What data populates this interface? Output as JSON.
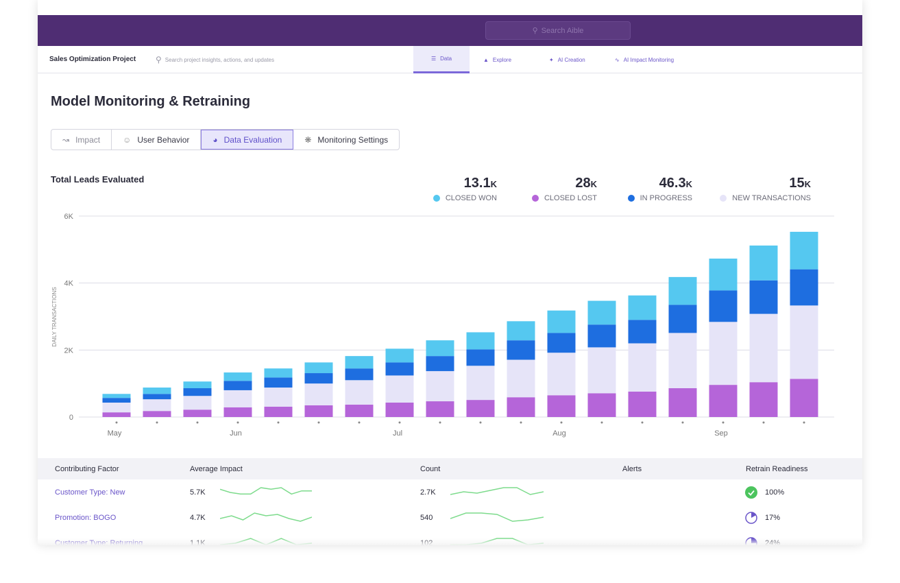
{
  "topbar": {
    "search_placeholder": "Search Aible"
  },
  "nav": {
    "project": "Sales Optimization Project",
    "search_placeholder": "Search project insights, actions, and updates",
    "tabs": [
      {
        "label": "Data",
        "icon": "database-icon",
        "active": true
      },
      {
        "label": "Explore",
        "icon": "explore-icon"
      },
      {
        "label": "AI Creation",
        "icon": "magic-wand-icon"
      },
      {
        "label": "AI Impact Monitoring",
        "icon": "pulse-icon"
      }
    ]
  },
  "page": {
    "title": "Model Monitoring & Retraining"
  },
  "subtabs": [
    {
      "label": "Impact",
      "icon": "chart-line-icon"
    },
    {
      "label": "User Behavior",
      "icon": "users-icon"
    },
    {
      "label": "Data Evaluation",
      "icon": "pie-icon",
      "active": true
    },
    {
      "label": "Monitoring Settings",
      "icon": "settings-icon"
    }
  ],
  "chart_title": "Total Leads Evaluated",
  "kpis": [
    {
      "value": "13.1",
      "unit": "K",
      "label": "CLOSED WON",
      "color": "#55c8f0"
    },
    {
      "value": "28",
      "unit": "K",
      "label": "CLOSED LOST",
      "color": "#b565d9"
    },
    {
      "value": "46.3",
      "unit": "K",
      "label": "IN PROGRESS",
      "color": "#1e6ee0"
    },
    {
      "value": "15",
      "unit": "K",
      "label": "NEW TRANSACTIONS",
      "color": "#e6e4f8"
    }
  ],
  "chart_data": {
    "type": "bar",
    "stacked": true,
    "ylabel": "DAILY TRANSACTIONS",
    "ylim": [
      0,
      6000
    ],
    "yticks": [
      {
        "v": 0,
        "label": "0"
      },
      {
        "v": 2000,
        "label": "2K"
      },
      {
        "v": 4000,
        "label": "4K"
      },
      {
        "v": 6000,
        "label": "6K"
      }
    ],
    "xlabels": [
      {
        "index": 0,
        "label": "May"
      },
      {
        "index": 3,
        "label": "Jun"
      },
      {
        "index": 7,
        "label": "Jul"
      },
      {
        "index": 11,
        "label": "Aug"
      },
      {
        "index": 15,
        "label": "Sep"
      }
    ],
    "grid": true,
    "series": [
      {
        "name": "CLOSED LOST",
        "color": "#b565d9",
        "values": [
          140,
          180,
          220,
          290,
          310,
          350,
          370,
          430,
          470,
          510,
          590,
          650,
          710,
          760,
          860,
          960,
          1040,
          1140
        ]
      },
      {
        "name": "NEW TRANSACTIONS",
        "color": "#e6e4f8",
        "values": [
          290,
          350,
          410,
          510,
          570,
          650,
          730,
          810,
          900,
          1020,
          1120,
          1270,
          1370,
          1440,
          1650,
          1880,
          2040,
          2190
        ]
      },
      {
        "name": "IN PROGRESS",
        "color": "#1e6ee0",
        "values": [
          140,
          160,
          230,
          280,
          300,
          310,
          350,
          390,
          450,
          490,
          580,
          590,
          680,
          700,
          840,
          940,
          1000,
          1080
        ]
      },
      {
        "name": "CLOSED WON",
        "color": "#55c8f0",
        "values": [
          120,
          190,
          200,
          250,
          270,
          320,
          370,
          410,
          470,
          510,
          570,
          670,
          710,
          730,
          830,
          950,
          1040,
          1120
        ]
      }
    ]
  },
  "table": {
    "headers": [
      "Contributing Factor",
      "Average Impact",
      "Count",
      "Alerts",
      "Retrain Readiness"
    ],
    "rows": [
      {
        "factor": "Customer Type: New",
        "impact": "5.7K",
        "impact_spark": [
          5,
          3,
          2,
          2,
          6,
          5,
          6,
          2,
          4,
          4
        ],
        "count": "2.7K",
        "count_spark": [
          2,
          4,
          3,
          5,
          7,
          7,
          2,
          4
        ],
        "readiness": "100%",
        "readiness_value": 100
      },
      {
        "factor": "Promotion: BOGO",
        "impact": "4.7K",
        "impact_spark": [
          3,
          5,
          2,
          7,
          5,
          6,
          3,
          1,
          4
        ],
        "count": "540",
        "count_spark": [
          3,
          7,
          7,
          6,
          1,
          2,
          4
        ],
        "readiness": "17%",
        "readiness_value": 17
      },
      {
        "factor": "Customer Type: Returning",
        "impact": "1.1K",
        "impact_spark": [
          2,
          3,
          6,
          2,
          6,
          2,
          3
        ],
        "count": "102",
        "count_spark": [
          2,
          2,
          3,
          6,
          6,
          2,
          3
        ],
        "readiness": "24%",
        "readiness_value": 24
      }
    ]
  }
}
